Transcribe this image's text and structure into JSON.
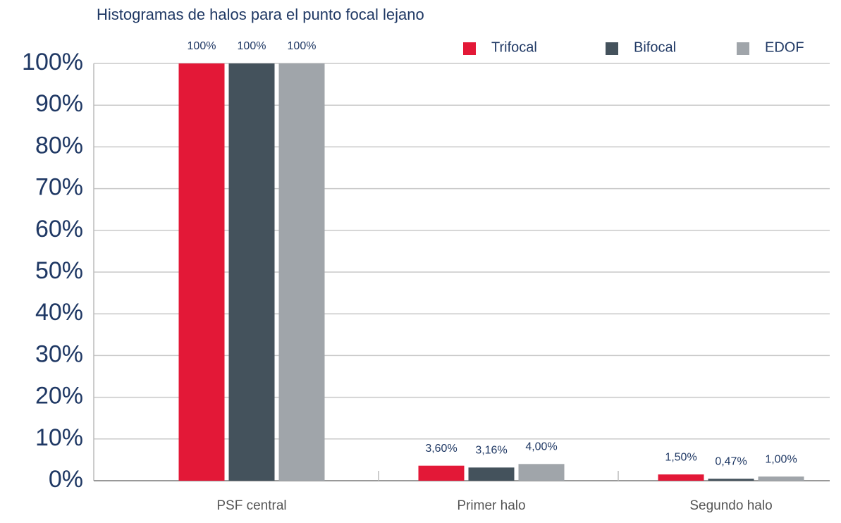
{
  "chart_data": {
    "type": "bar",
    "title": "Histogramas de halos para el punto focal lejano",
    "categories": [
      "PSF central",
      "Primer halo",
      "Segundo halo"
    ],
    "series": [
      {
        "name": "Trifocal",
        "color": "#e31837",
        "values": [
          100,
          3.6,
          1.5
        ],
        "value_labels": [
          "100%",
          "3,60%",
          "1,50%"
        ]
      },
      {
        "name": "Bifocal",
        "color": "#44525c",
        "values": [
          100,
          3.16,
          0.47
        ],
        "value_labels": [
          "100%",
          "3,16%",
          "0,47%"
        ]
      },
      {
        "name": "EDOF",
        "color": "#a0a5aa",
        "values": [
          100,
          4.0,
          1.0
        ],
        "value_labels": [
          "100%",
          "4,00%",
          "1,00%"
        ]
      }
    ],
    "ylim": [
      0,
      100
    ],
    "yticks": [
      {
        "value": 0,
        "label": "0%"
      },
      {
        "value": 10,
        "label": "10%"
      },
      {
        "value": 20,
        "label": "20%"
      },
      {
        "value": 30,
        "label": "30%"
      },
      {
        "value": 40,
        "label": "40%"
      },
      {
        "value": 50,
        "label": "50%"
      },
      {
        "value": 60,
        "label": "60%"
      },
      {
        "value": 70,
        "label": "70%"
      },
      {
        "value": 80,
        "label": "80%"
      },
      {
        "value": 90,
        "label": "90%"
      },
      {
        "value": 100,
        "label": "100%"
      }
    ],
    "grid": true,
    "legend": "top-right"
  }
}
